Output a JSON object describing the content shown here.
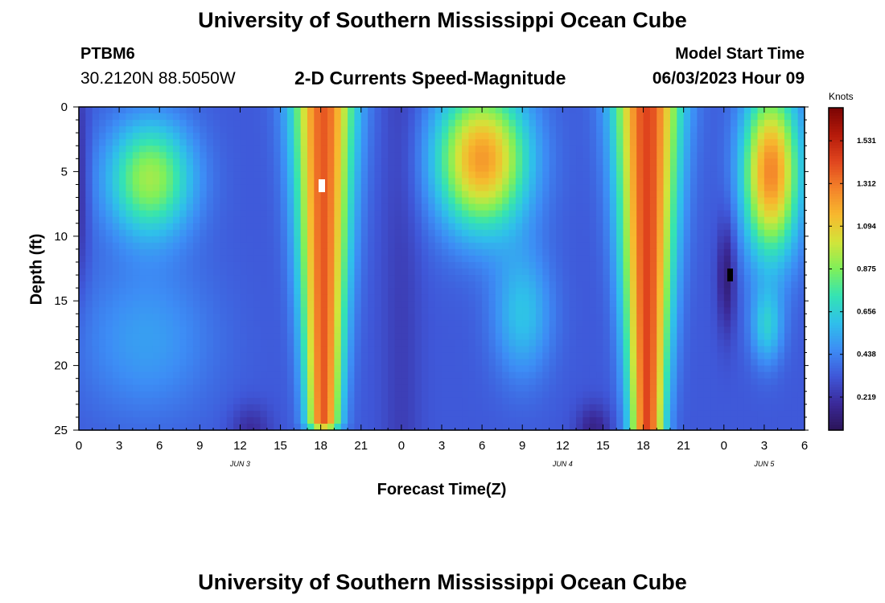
{
  "header": {
    "title": "University of Southern Mississippi Ocean Cube",
    "station": "PTBM6",
    "coords": "30.2120N  88.5050W",
    "subtitle": "2-D Currents Speed-Magnitude",
    "start_label": "Model Start Time",
    "start_value": "06/03/2023 Hour 09"
  },
  "footer": {
    "title": "University of Southern Mississippi Ocean Cube"
  },
  "chart_data": {
    "type": "heatmap",
    "xlabel": "Forecast Time(Z)",
    "ylabel": "Depth (ft)",
    "x_ticks": [
      "0",
      "3",
      "6",
      "9",
      "12",
      "15",
      "18",
      "21",
      "0",
      "3",
      "6",
      "9",
      "12",
      "15",
      "18",
      "21",
      "0",
      "3",
      "6"
    ],
    "x_range_hours": [
      0,
      54
    ],
    "date_labels": [
      {
        "text": "JUN 3",
        "hour": 12
      },
      {
        "text": "JUN 4",
        "hour": 36
      },
      {
        "text": "JUN 5",
        "hour": 51
      }
    ],
    "y_ticks": [
      0,
      5,
      10,
      15,
      20,
      25
    ],
    "ylim": [
      0,
      25
    ],
    "y_inverted": true,
    "colorbar": {
      "title": "Knots",
      "ticks": [
        "0.219",
        "0.438",
        "0.656",
        "0.875",
        "1.094",
        "1.312",
        "1.531"
      ],
      "range": [
        0.05,
        1.7
      ],
      "colors": [
        "#2b1458",
        "#3b2a9a",
        "#3f57d8",
        "#3d8df5",
        "#2fc0ea",
        "#34e3b3",
        "#7ff05a",
        "#d2e43a",
        "#f7b92e",
        "#f4822a",
        "#e0451e",
        "#b51a0a",
        "#7a0404"
      ]
    },
    "features": [
      {
        "hour_start": 0,
        "hour_end": 10,
        "peak_depth_ft": 5,
        "peak_speed": 0.95,
        "description": "moderate surface maximum"
      },
      {
        "hour_start": 16,
        "hour_end": 21,
        "peak_depth_ft": 3,
        "peak_speed": 1.62,
        "description": "strong flow through water column"
      },
      {
        "hour_start": 26,
        "hour_end": 34,
        "peak_depth_ft": 4,
        "peak_speed": 1.4,
        "description": "strong upper-layer flow"
      },
      {
        "hour_start": 40,
        "hour_end": 45,
        "peak_depth_ft": 5,
        "peak_speed": 1.62,
        "description": "strong flow through water column"
      },
      {
        "hour_start": 50,
        "hour_end": 54,
        "peak_depth_ft": 5,
        "peak_speed": 1.45,
        "description": "strong upper-layer flow"
      }
    ]
  }
}
